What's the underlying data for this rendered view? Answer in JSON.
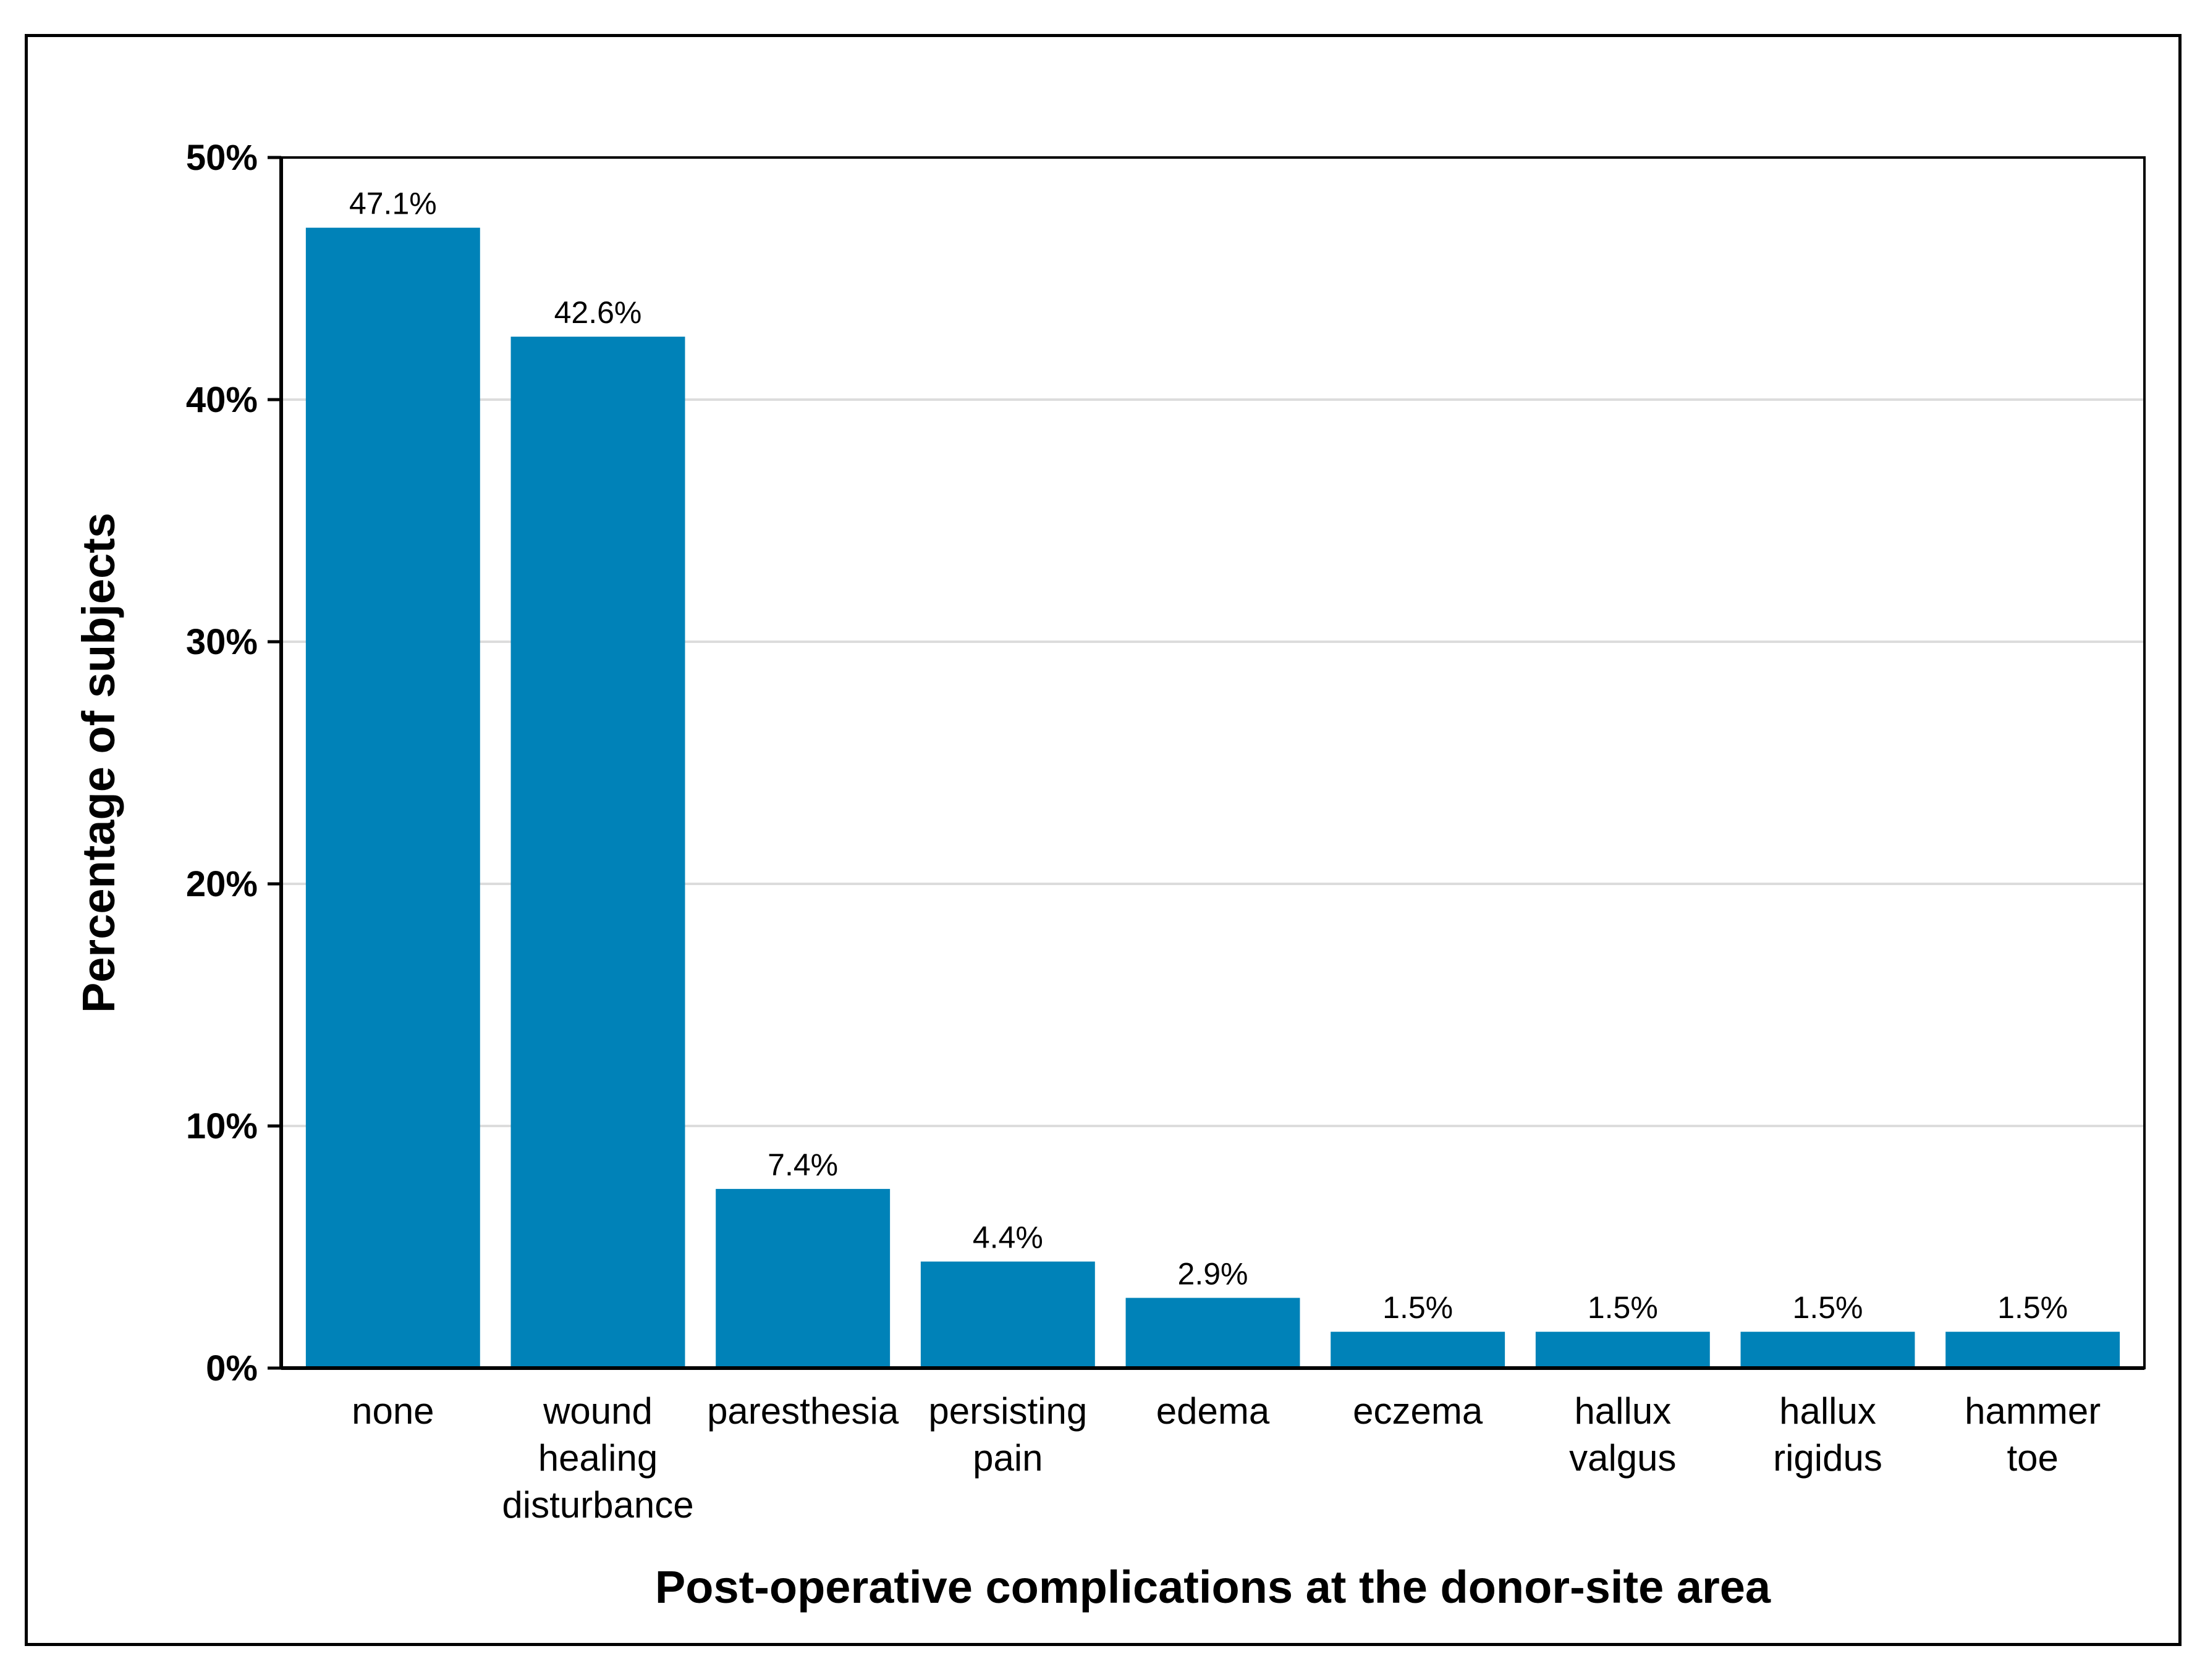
{
  "chart_data": {
    "type": "bar",
    "title": "",
    "xlabel": "Post-operative complications at the donor-site area",
    "ylabel": "Percentage of subjects",
    "ylim": [
      0,
      50
    ],
    "yticks": [
      0,
      10,
      20,
      30,
      40,
      50
    ],
    "ytick_labels": [
      "0%",
      "10%",
      "20%",
      "30%",
      "40%",
      "50%"
    ],
    "grid": true,
    "categories": [
      [
        "none"
      ],
      [
        "wound",
        "healing",
        "disturbance"
      ],
      [
        "paresthesia"
      ],
      [
        "persisting",
        "pain"
      ],
      [
        "edema"
      ],
      [
        "eczema"
      ],
      [
        "hallux",
        "valgus"
      ],
      [
        "hallux",
        "rigidus"
      ],
      [
        "hammer",
        "toe"
      ]
    ],
    "values": [
      47.1,
      42.6,
      7.4,
      4.4,
      2.9,
      1.5,
      1.5,
      1.5,
      1.5
    ],
    "data_labels": [
      "47.1%",
      "42.6%",
      "7.4%",
      "4.4%",
      "2.9%",
      "1.5%",
      "1.5%",
      "1.5%",
      "1.5%"
    ],
    "bar_color": "#0082b8",
    "grid_color": "#dcdcdc"
  }
}
